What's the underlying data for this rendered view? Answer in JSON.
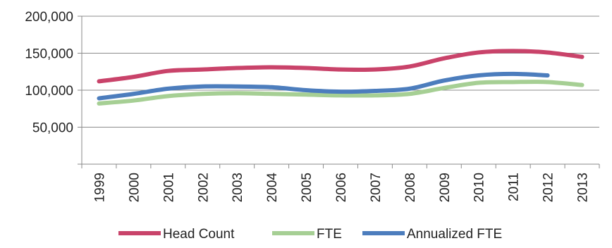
{
  "chart_data": {
    "type": "line",
    "x": [
      "1999",
      "2000",
      "2001",
      "2002",
      "2003",
      "2004",
      "2005",
      "2006",
      "2007",
      "2008",
      "2009",
      "2010",
      "2011",
      "2012",
      "2013"
    ],
    "ylim": [
      0,
      200000
    ],
    "y_ticks": [
      {
        "value": 50000,
        "label": "50,000"
      },
      {
        "value": 100000,
        "label": "100,000"
      },
      {
        "value": 150000,
        "label": "150,000"
      },
      {
        "value": 200000,
        "label": "200,000"
      }
    ],
    "grid": "horizontal",
    "legend": "bottom",
    "series": [
      {
        "name": "Head Count",
        "color": "#c9436a",
        "values": [
          112000,
          118000,
          126000,
          128000,
          130000,
          131000,
          130000,
          128000,
          128000,
          132000,
          143000,
          151000,
          153000,
          151000,
          145000
        ]
      },
      {
        "name": "FTE",
        "color": "#a6cf94",
        "values": [
          82000,
          86000,
          92000,
          95000,
          96000,
          95000,
          94000,
          93000,
          93000,
          95000,
          103000,
          110000,
          111000,
          111000,
          107000
        ]
      },
      {
        "name": "Annualized FTE",
        "color": "#4c7dbd",
        "values": [
          89000,
          95000,
          102000,
          105000,
          105000,
          104000,
          100000,
          98000,
          99000,
          102000,
          113000,
          120000,
          122000,
          120000,
          null
        ]
      }
    ]
  }
}
